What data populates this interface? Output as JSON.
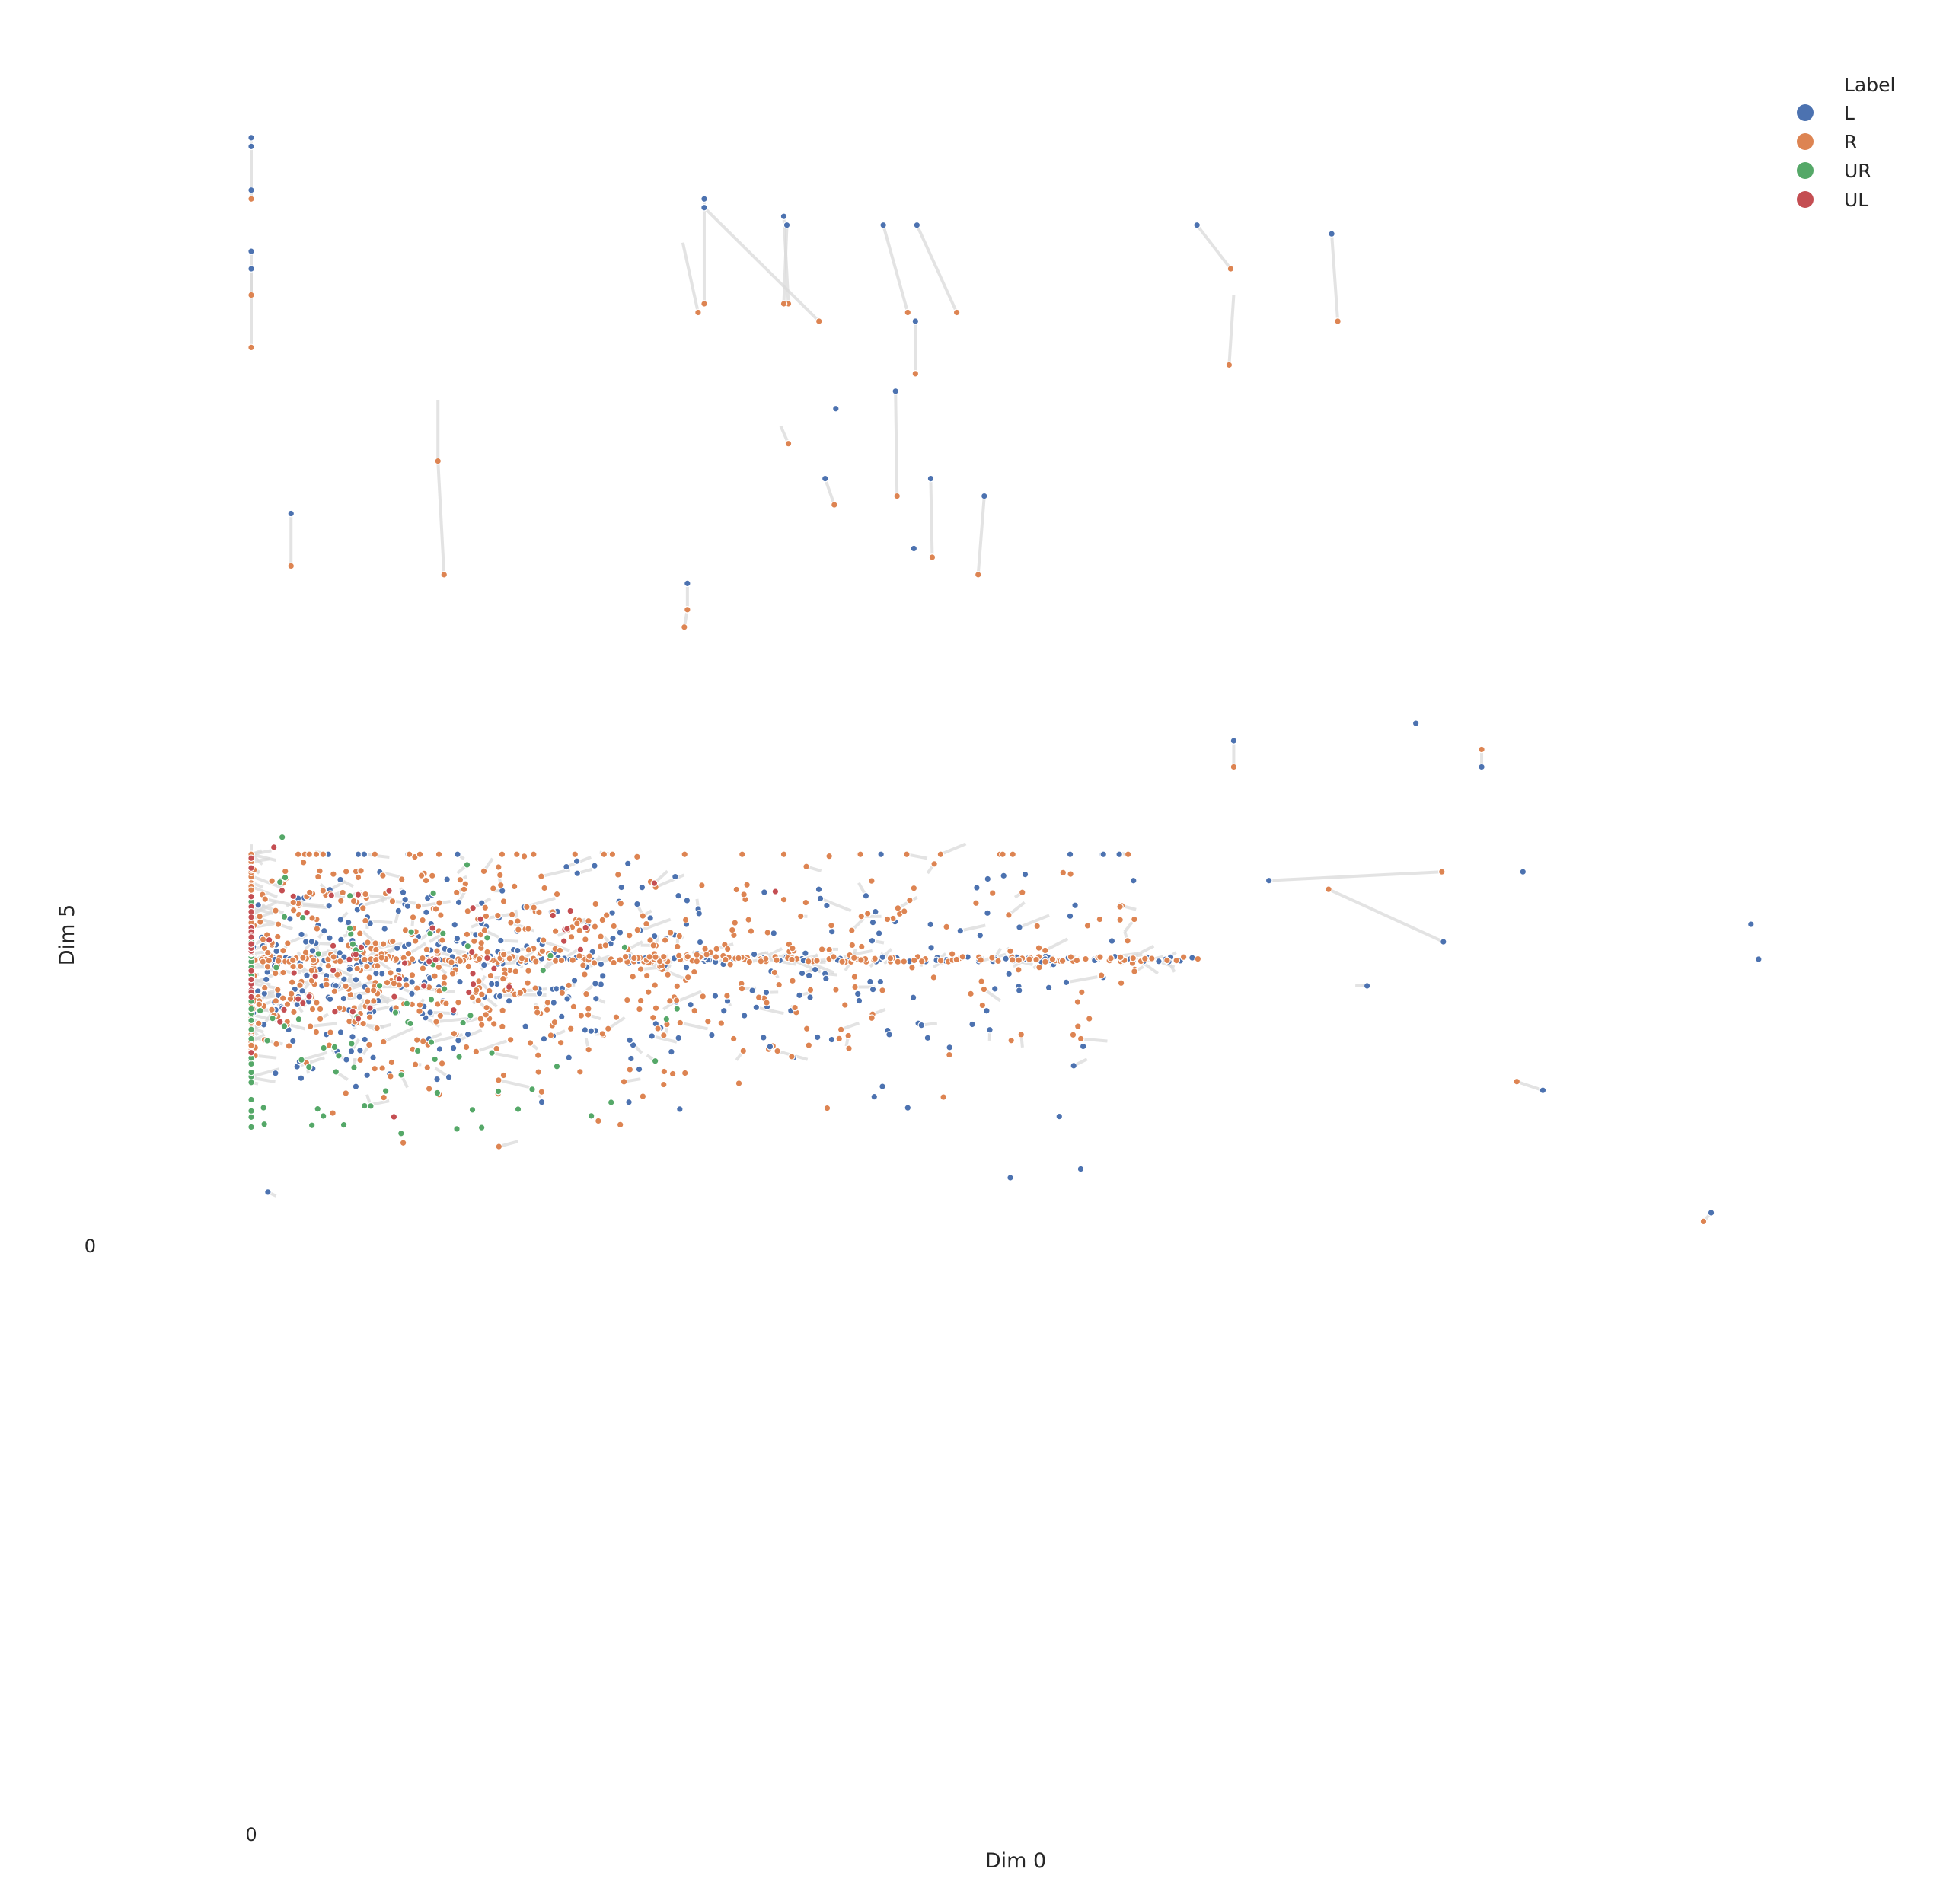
{
  "chart_data": {
    "type": "scatter",
    "xlabel": "Dim 0",
    "ylabel": "Dim 5",
    "xticks": [
      "0"
    ],
    "yticks": [
      "0"
    ],
    "xlim": [
      0,
      100
    ],
    "ylim": [
      -100,
      100
    ],
    "grid": false,
    "legend": {
      "title": "Label",
      "position": "top-right",
      "entries": [
        {
          "name": "L",
          "color": "#4c72b0"
        },
        {
          "name": "R",
          "color": "#dd8452"
        },
        {
          "name": "UR",
          "color": "#55a868"
        },
        {
          "name": "UL",
          "color": "#c44e52"
        }
      ]
    },
    "series": [
      {
        "name": "L",
        "color": "#4c72b0",
        "points": [
          [
            0,
            94
          ],
          [
            0,
            93
          ],
          [
            0,
            88
          ],
          [
            0,
            81
          ],
          [
            0,
            79
          ],
          [
            29.6,
            87
          ],
          [
            29.6,
            86
          ],
          [
            34.8,
            85
          ],
          [
            35,
            84
          ],
          [
            41.3,
            84
          ],
          [
            43.5,
            84
          ],
          [
            61.8,
            84
          ],
          [
            70.6,
            83
          ],
          [
            2.6,
            51
          ],
          [
            12.2,
            57
          ],
          [
            28.5,
            43
          ],
          [
            28.5,
            40
          ],
          [
            43.3,
            47
          ],
          [
            37.5,
            55
          ],
          [
            47.9,
            53
          ],
          [
            42.1,
            65
          ],
          [
            43.4,
            73
          ],
          [
            44.4,
            55
          ],
          [
            38.2,
            63
          ],
          [
            64.2,
            25
          ],
          [
            80.4,
            22
          ],
          [
            76.1,
            27
          ],
          [
            83.1,
            10
          ],
          [
            66.5,
            9
          ],
          [
            77.9,
            2
          ],
          [
            98,
            4
          ],
          [
            98.5,
            0
          ],
          [
            84.4,
            -15
          ],
          [
            95.4,
            -29
          ],
          [
            54.2,
            -24
          ],
          [
            52.8,
            -18
          ],
          [
            49.6,
            -25
          ],
          [
            42.9,
            -17
          ],
          [
            33.9,
            -10
          ],
          [
            44.2,
            -9
          ]
        ]
      },
      {
        "name": "R",
        "color": "#dd8452"
      },
      {
        "name": "UR",
        "color": "#55a868"
      },
      {
        "name": "UL",
        "color": "#c44e52"
      }
    ],
    "pairs": [
      [
        [
          0,
          94
        ],
        [
          0,
          87
        ]
      ],
      [
        [
          0,
          81
        ],
        [
          0,
          76
        ]
      ],
      [
        [
          0,
          79
        ],
        [
          0,
          70
        ]
      ],
      [
        [
          2.6,
          51
        ],
        [
          2.6,
          45
        ]
      ],
      [
        [
          12.2,
          57
        ],
        [
          12.6,
          44
        ]
      ],
      [
        [
          28.2,
          82
        ],
        [
          29.2,
          74
        ]
      ],
      [
        [
          29.6,
          87
        ],
        [
          29.6,
          75
        ]
      ],
      [
        [
          29.6,
          86
        ],
        [
          37.1,
          73
        ]
      ],
      [
        [
          34.8,
          85
        ],
        [
          35.1,
          75
        ]
      ],
      [
        [
          35,
          84
        ],
        [
          34.8,
          75
        ]
      ],
      [
        [
          41.3,
          84
        ],
        [
          42.9,
          74
        ]
      ],
      [
        [
          43.5,
          84
        ],
        [
          46.1,
          74
        ]
      ],
      [
        [
          43.4,
          73
        ],
        [
          43.4,
          67
        ]
      ],
      [
        [
          37.5,
          55
        ],
        [
          38.1,
          52
        ]
      ],
      [
        [
          42.1,
          65
        ],
        [
          42.2,
          53
        ]
      ],
      [
        [
          44.4,
          55
        ],
        [
          44.5,
          46
        ]
      ],
      [
        [
          28.5,
          43
        ],
        [
          28.5,
          40
        ]
      ],
      [
        [
          28.5,
          40
        ],
        [
          28.3,
          38
        ]
      ],
      [
        [
          47.9,
          53
        ],
        [
          47.5,
          44
        ]
      ],
      [
        [
          61.8,
          84
        ],
        [
          64,
          79
        ]
      ],
      [
        [
          64.2,
          76
        ],
        [
          63.9,
          68
        ]
      ],
      [
        [
          70.6,
          83
        ],
        [
          71,
          73
        ]
      ],
      [
        [
          64.2,
          25
        ],
        [
          64.2,
          22
        ]
      ],
      [
        [
          80.4,
          22
        ],
        [
          80.4,
          24
        ]
      ],
      [
        [
          34.6,
          61
        ],
        [
          35.1,
          59
        ]
      ],
      [
        [
          12.2,
          64
        ],
        [
          12.2,
          57
        ]
      ],
      [
        [
          66.5,
          9
        ],
        [
          77.8,
          10
        ]
      ],
      [
        [
          77.9,
          2
        ],
        [
          70.4,
          8
        ]
      ],
      [
        [
          95.4,
          -29
        ],
        [
          94.9,
          -30
        ]
      ],
      [
        [
          84.4,
          -15
        ],
        [
          82.7,
          -14
        ]
      ]
    ],
    "cloud_stats": {
      "note_count_per_series": [
        560,
        900,
        120,
        80
      ]
    }
  }
}
